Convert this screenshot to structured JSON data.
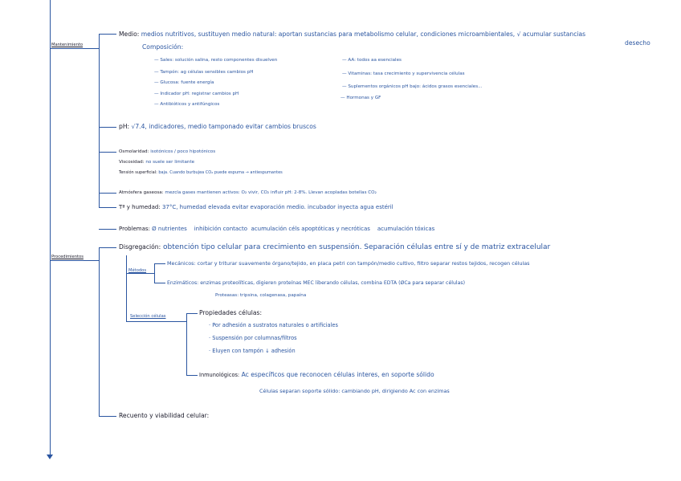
{
  "colors": {
    "ink_blue": "#2a55a0",
    "ink_black": "#1a1a2a"
  },
  "sections": {
    "mantenimiento": {
      "label": "Mantenimiento",
      "medio": {
        "key": "Medio:",
        "text": "medios nutritivos, sustituyen medio natural: aportan sustancias para metabolismo celular, condiciones microambientales, √ acumular sustancias",
        "text2": "desecho",
        "composicion": "Composición:",
        "left": [
          "— Sales: solución salina, resto componentes disuelven",
          "— Tampón: ag células sensibles cambios pH",
          "— Glucosa: fuente energía",
          "— Indicador pH: registrar cambios pH",
          "— Antibióticos y antifúngicos"
        ],
        "right": [
          "— AA: todos aa esenciales",
          "— Vitaminas: tasa crecimiento y supervivencia células",
          "— Suplementos orgánicos pH bajo: ácidos grasos esenciales...",
          "— Hormonas y GF"
        ]
      },
      "ph": {
        "key": "pH:",
        "text": "√7.4, indicadores, medio tamponado evitar cambios bruscos"
      },
      "osmolaridad": {
        "key": "Osmolaridad:",
        "text": "isotónicos / poco hipotónicos"
      },
      "viscosidad": {
        "key": "Viscosidad:",
        "text": "no suele ser limitante"
      },
      "tension": {
        "key": "Tensión superficial:",
        "text": "baja. Cuando burbujea CO₂ puede espuma → antiespumantes"
      },
      "atmosfera": {
        "key": "Atmósfera gaseosa:",
        "text": "mezcla gases mantienen activos: O₂ vivir, CO₂ influir pH: 2-8%. Llevan acopladas botellas CO₂"
      },
      "temp": {
        "key": "Tª y humedad:",
        "text": "37°C, humedad elevada evitar evaporación medio. incubador inyecta agua estéril"
      }
    },
    "problemas": {
      "key": "Problemas:",
      "items": [
        "Ø nutrientes",
        "inhibición contacto",
        "acumulación céls apoptóticas y necróticas",
        "acumulación tóxicas"
      ]
    },
    "procedimientos": {
      "label": "Procedimientos",
      "disgregacion": {
        "key": "Disgregación:",
        "text": "obtención tipo celular para crecimiento en suspensión. Separación células entre sí y de matriz extracelular"
      },
      "metodos": {
        "label": "Métodos",
        "mecanicos": {
          "key": "Mecánicos:",
          "text": "cortar y triturar suavemente órgano/tejido, en placa petri con tampón/medio cultivo, filtro separar restos tejidos, recogen células"
        },
        "enzimaticos": {
          "key": "Enzimáticos:",
          "text": "enzimas proteolíticas, digieren proteínas MEC liberando células, combina EDTA (ØCa para separar células)",
          "proteasas": "Proteasas: tripsina, colagenasa, papaína"
        }
      },
      "seleccion": {
        "label": "Selección células",
        "propiedades": {
          "key": "Propiedades células:",
          "items": [
            "· Por adhesión a sustratos naturales o artificiales",
            "· Suspensión por columnas/filtros",
            "· Eluyen con tampón ↓ adhesión"
          ]
        },
        "inmunologicos": {
          "key": "Inmunológicos:",
          "text": "Ac específicos que reconocen células interes, en soporte sólido",
          "text2": "Células separan soporte sólido: cambiando pH, dirigiendo Ac con enzimas"
        }
      },
      "recuento": {
        "key": "Recuento y viabilidad celular:"
      }
    }
  }
}
